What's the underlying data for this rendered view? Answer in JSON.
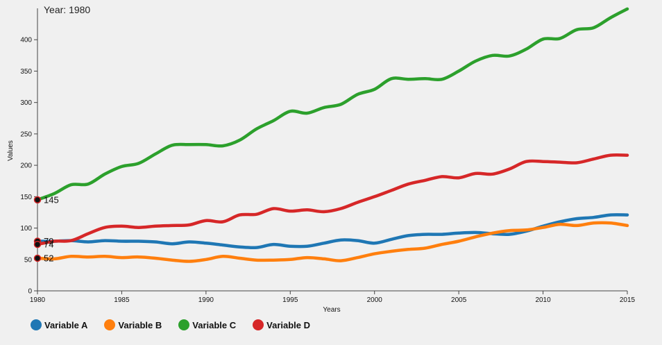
{
  "chart_data": {
    "type": "line",
    "title": "",
    "year_label": "Year: 1980",
    "xlabel": "Years",
    "ylabel": "Values",
    "xlim": [
      1980,
      2015
    ],
    "ylim": [
      0,
      450
    ],
    "x_ticks": [
      1980,
      1985,
      1990,
      1995,
      2000,
      2005,
      2010,
      2015
    ],
    "y_ticks": [
      0,
      50,
      100,
      150,
      200,
      250,
      300,
      350,
      400
    ],
    "x": [
      1980,
      1981,
      1982,
      1983,
      1984,
      1985,
      1986,
      1987,
      1988,
      1989,
      1990,
      1991,
      1992,
      1993,
      1994,
      1995,
      1996,
      1997,
      1998,
      1999,
      2000,
      2001,
      2002,
      2003,
      2004,
      2005,
      2006,
      2007,
      2008,
      2009,
      2010,
      2011,
      2012,
      2013,
      2014,
      2015
    ],
    "series": [
      {
        "name": "Variable A",
        "color": "#1f77b4",
        "values": [
          79,
          79,
          80,
          78,
          80,
          79,
          79,
          78,
          75,
          78,
          76,
          73,
          70,
          69,
          74,
          71,
          71,
          76,
          81,
          80,
          76,
          82,
          88,
          90,
          90,
          92,
          93,
          91,
          90,
          95,
          103,
          110,
          115,
          117,
          121,
          121
        ]
      },
      {
        "name": "Variable B",
        "color": "#ff7f0e",
        "values": [
          52,
          51,
          55,
          54,
          55,
          53,
          54,
          52,
          49,
          47,
          50,
          55,
          52,
          49,
          49,
          50,
          53,
          51,
          48,
          53,
          59,
          63,
          66,
          68,
          74,
          79,
          86,
          92,
          96,
          97,
          101,
          106,
          104,
          108,
          108,
          104
        ]
      },
      {
        "name": "Variable C",
        "color": "#2ca02c",
        "values": [
          145,
          155,
          169,
          170,
          186,
          198,
          203,
          218,
          232,
          233,
          233,
          231,
          240,
          258,
          271,
          286,
          283,
          292,
          297,
          313,
          321,
          338,
          337,
          338,
          337,
          350,
          366,
          375,
          374,
          385,
          401,
          402,
          416,
          419,
          435,
          449
        ]
      },
      {
        "name": "Variable D",
        "color": "#d62728",
        "values": [
          74,
          79,
          80,
          91,
          101,
          103,
          101,
          103,
          104,
          105,
          112,
          110,
          121,
          122,
          131,
          127,
          129,
          126,
          131,
          141,
          150,
          160,
          170,
          176,
          182,
          180,
          187,
          186,
          194,
          206,
          206,
          205,
          204,
          210,
          216,
          216
        ]
      }
    ],
    "hover_points": [
      {
        "series": "Variable A",
        "value": 79,
        "label": "79"
      },
      {
        "series": "Variable B",
        "value": 52,
        "label": "52"
      },
      {
        "series": "Variable C",
        "value": 145,
        "label": "145"
      },
      {
        "series": "Variable D",
        "value": 74,
        "label": "74"
      }
    ]
  },
  "legend": [
    {
      "label": "Variable A",
      "color": "#1f77b4"
    },
    {
      "label": "Variable B",
      "color": "#ff7f0e"
    },
    {
      "label": "Variable C",
      "color": "#2ca02c"
    },
    {
      "label": "Variable D",
      "color": "#d62728"
    }
  ]
}
